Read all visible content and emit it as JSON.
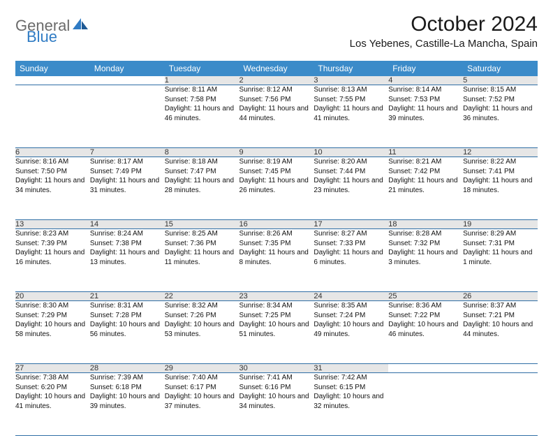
{
  "brand": {
    "part1": "General",
    "part2": "Blue"
  },
  "title": "October 2024",
  "location": "Los Yebenes, Castille-La Mancha, Spain",
  "colors": {
    "header_bg": "#3b8bc9",
    "header_text": "#ffffff",
    "daynum_bg": "#e6e6e6",
    "row_border": "#2f6ea5",
    "logo_gray": "#6b6b6b",
    "logo_blue": "#2f7bc4"
  },
  "weekdays": [
    "Sunday",
    "Monday",
    "Tuesday",
    "Wednesday",
    "Thursday",
    "Friday",
    "Saturday"
  ],
  "weeks": [
    [
      null,
      null,
      {
        "n": "1",
        "sr": "8:11 AM",
        "ss": "7:58 PM",
        "dl": "11 hours and 46 minutes."
      },
      {
        "n": "2",
        "sr": "8:12 AM",
        "ss": "7:56 PM",
        "dl": "11 hours and 44 minutes."
      },
      {
        "n": "3",
        "sr": "8:13 AM",
        "ss": "7:55 PM",
        "dl": "11 hours and 41 minutes."
      },
      {
        "n": "4",
        "sr": "8:14 AM",
        "ss": "7:53 PM",
        "dl": "11 hours and 39 minutes."
      },
      {
        "n": "5",
        "sr": "8:15 AM",
        "ss": "7:52 PM",
        "dl": "11 hours and 36 minutes."
      }
    ],
    [
      {
        "n": "6",
        "sr": "8:16 AM",
        "ss": "7:50 PM",
        "dl": "11 hours and 34 minutes."
      },
      {
        "n": "7",
        "sr": "8:17 AM",
        "ss": "7:49 PM",
        "dl": "11 hours and 31 minutes."
      },
      {
        "n": "8",
        "sr": "8:18 AM",
        "ss": "7:47 PM",
        "dl": "11 hours and 28 minutes."
      },
      {
        "n": "9",
        "sr": "8:19 AM",
        "ss": "7:45 PM",
        "dl": "11 hours and 26 minutes."
      },
      {
        "n": "10",
        "sr": "8:20 AM",
        "ss": "7:44 PM",
        "dl": "11 hours and 23 minutes."
      },
      {
        "n": "11",
        "sr": "8:21 AM",
        "ss": "7:42 PM",
        "dl": "11 hours and 21 minutes."
      },
      {
        "n": "12",
        "sr": "8:22 AM",
        "ss": "7:41 PM",
        "dl": "11 hours and 18 minutes."
      }
    ],
    [
      {
        "n": "13",
        "sr": "8:23 AM",
        "ss": "7:39 PM",
        "dl": "11 hours and 16 minutes."
      },
      {
        "n": "14",
        "sr": "8:24 AM",
        "ss": "7:38 PM",
        "dl": "11 hours and 13 minutes."
      },
      {
        "n": "15",
        "sr": "8:25 AM",
        "ss": "7:36 PM",
        "dl": "11 hours and 11 minutes."
      },
      {
        "n": "16",
        "sr": "8:26 AM",
        "ss": "7:35 PM",
        "dl": "11 hours and 8 minutes."
      },
      {
        "n": "17",
        "sr": "8:27 AM",
        "ss": "7:33 PM",
        "dl": "11 hours and 6 minutes."
      },
      {
        "n": "18",
        "sr": "8:28 AM",
        "ss": "7:32 PM",
        "dl": "11 hours and 3 minutes."
      },
      {
        "n": "19",
        "sr": "8:29 AM",
        "ss": "7:31 PM",
        "dl": "11 hours and 1 minute."
      }
    ],
    [
      {
        "n": "20",
        "sr": "8:30 AM",
        "ss": "7:29 PM",
        "dl": "10 hours and 58 minutes."
      },
      {
        "n": "21",
        "sr": "8:31 AM",
        "ss": "7:28 PM",
        "dl": "10 hours and 56 minutes."
      },
      {
        "n": "22",
        "sr": "8:32 AM",
        "ss": "7:26 PM",
        "dl": "10 hours and 53 minutes."
      },
      {
        "n": "23",
        "sr": "8:34 AM",
        "ss": "7:25 PM",
        "dl": "10 hours and 51 minutes."
      },
      {
        "n": "24",
        "sr": "8:35 AM",
        "ss": "7:24 PM",
        "dl": "10 hours and 49 minutes."
      },
      {
        "n": "25",
        "sr": "8:36 AM",
        "ss": "7:22 PM",
        "dl": "10 hours and 46 minutes."
      },
      {
        "n": "26",
        "sr": "8:37 AM",
        "ss": "7:21 PM",
        "dl": "10 hours and 44 minutes."
      }
    ],
    [
      {
        "n": "27",
        "sr": "7:38 AM",
        "ss": "6:20 PM",
        "dl": "10 hours and 41 minutes."
      },
      {
        "n": "28",
        "sr": "7:39 AM",
        "ss": "6:18 PM",
        "dl": "10 hours and 39 minutes."
      },
      {
        "n": "29",
        "sr": "7:40 AM",
        "ss": "6:17 PM",
        "dl": "10 hours and 37 minutes."
      },
      {
        "n": "30",
        "sr": "7:41 AM",
        "ss": "6:16 PM",
        "dl": "10 hours and 34 minutes."
      },
      {
        "n": "31",
        "sr": "7:42 AM",
        "ss": "6:15 PM",
        "dl": "10 hours and 32 minutes."
      },
      null,
      null
    ]
  ],
  "labels": {
    "sunrise": "Sunrise:",
    "sunset": "Sunset:",
    "daylight": "Daylight:"
  }
}
